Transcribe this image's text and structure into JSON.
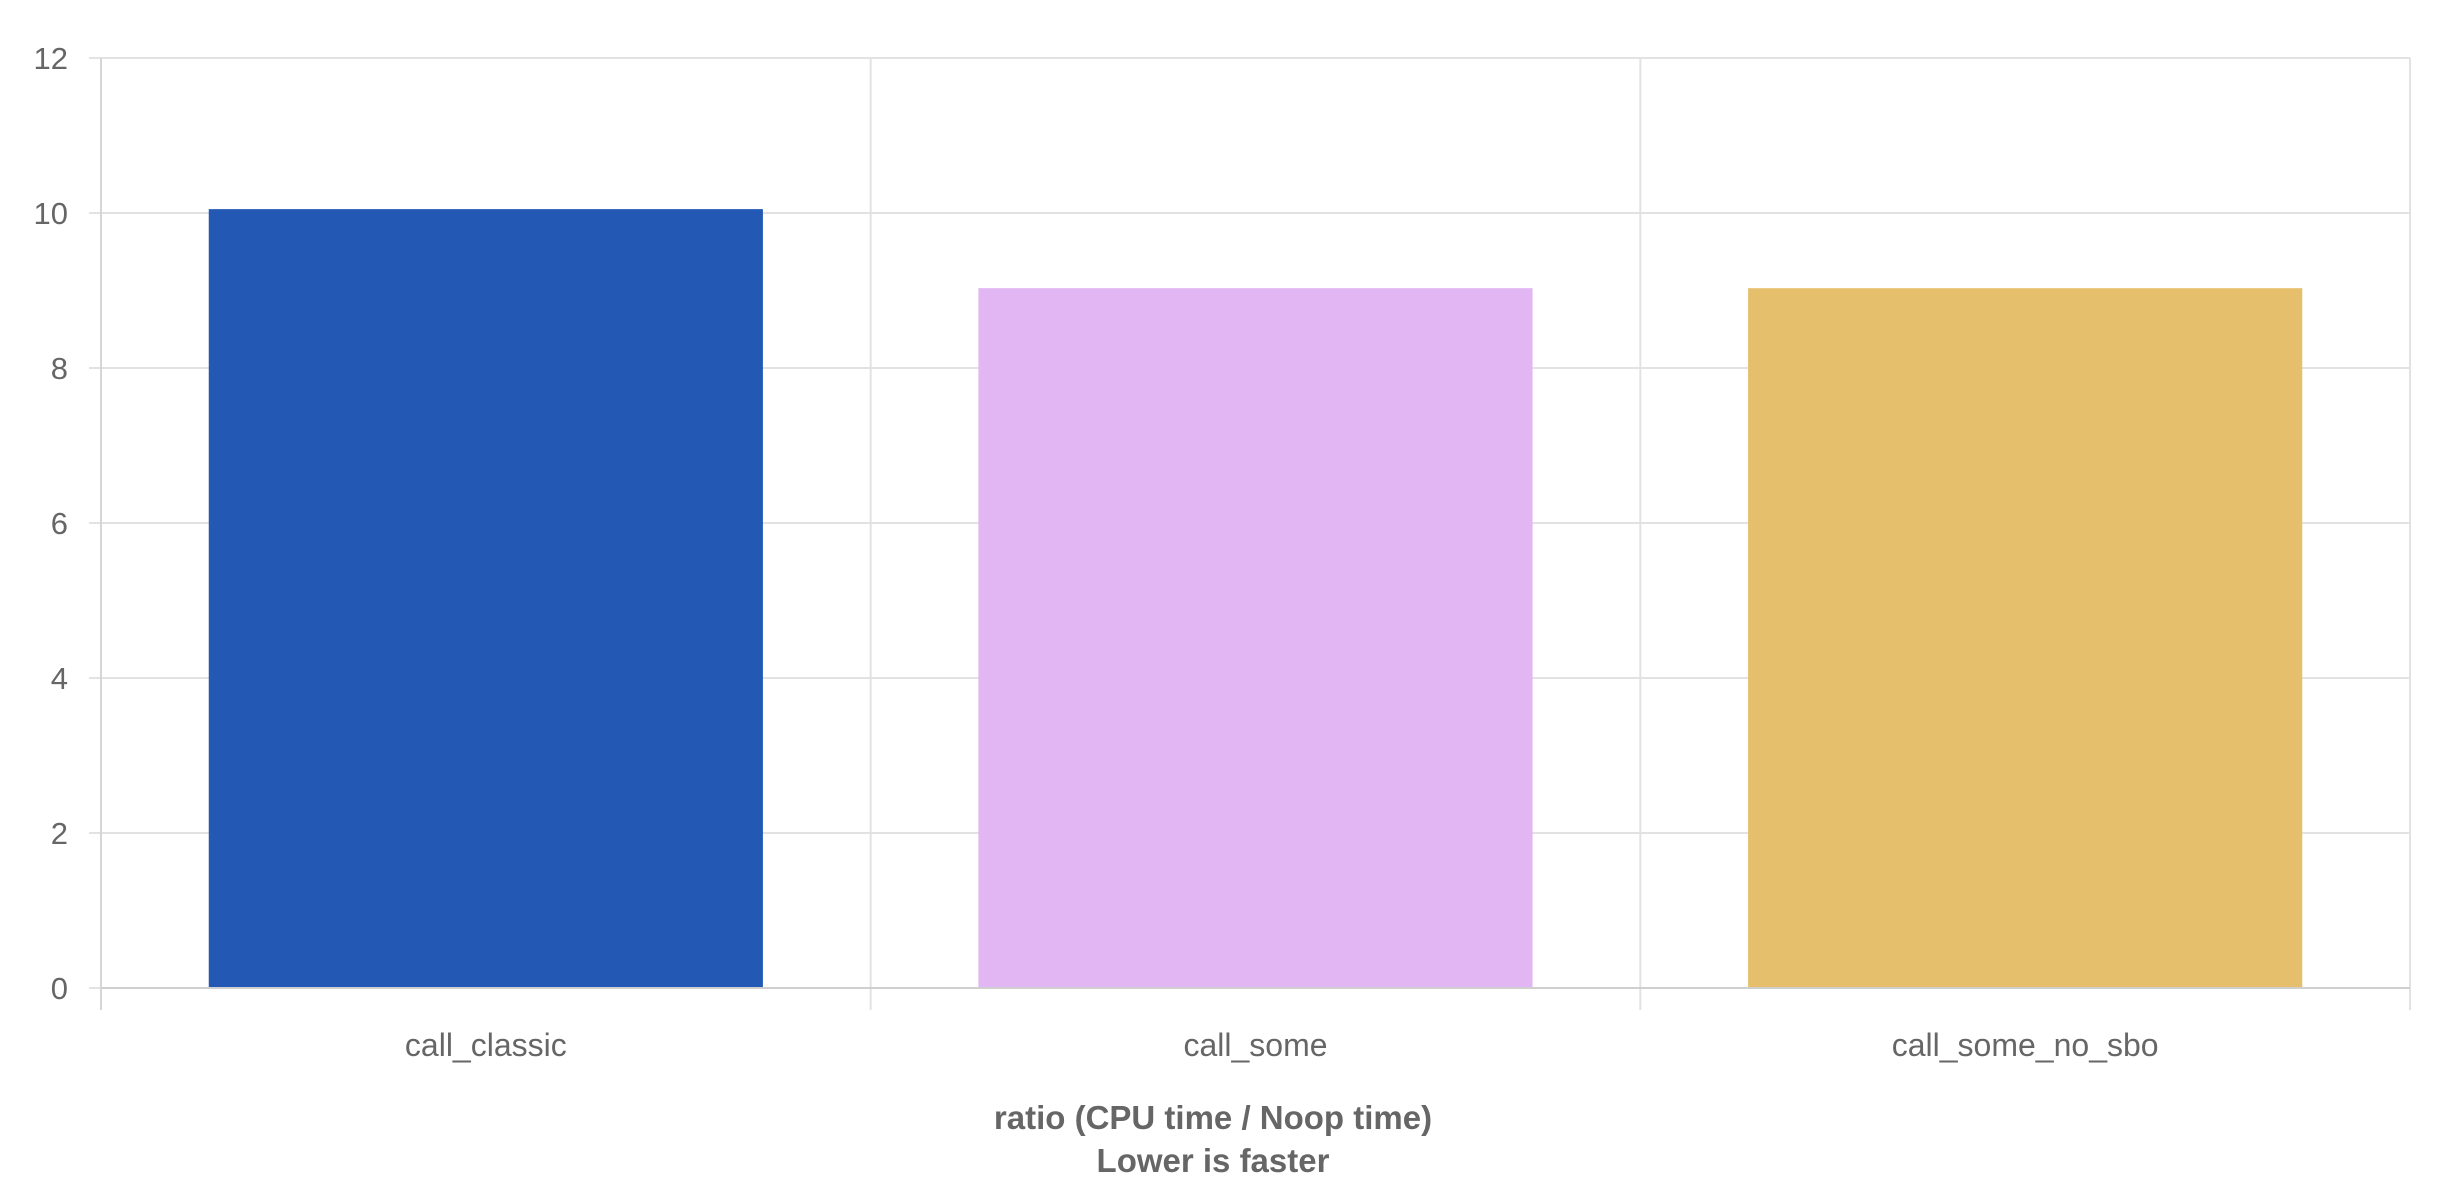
{
  "chart_data": {
    "type": "bar",
    "categories": [
      "call_classic",
      "call_some",
      "call_some_no_sbo"
    ],
    "values": [
      10.05,
      9.03,
      9.03
    ],
    "colors": [
      "#2359b4",
      "#e1b6f2",
      "#e5bf6c"
    ],
    "ylim": [
      0,
      12
    ],
    "yticks": [
      0,
      2,
      4,
      6,
      8,
      10,
      12
    ],
    "xlabel": [
      "ratio (CPU time / Noop time)",
      "Lower is faster"
    ],
    "ylabel": "",
    "grid": true,
    "legend": "none"
  }
}
